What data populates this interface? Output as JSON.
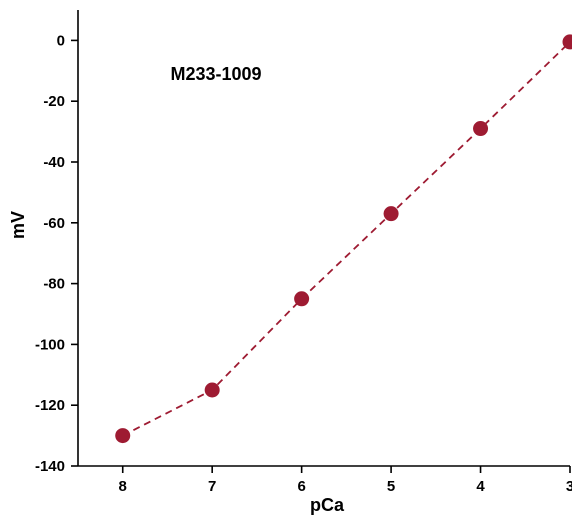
{
  "chart_data": {
    "type": "line",
    "title": "",
    "annotation": "M233-1009",
    "xlabel": "pCa",
    "ylabel": "mV",
    "x": [
      8,
      7,
      6,
      5,
      4,
      3
    ],
    "x_ticks": [
      "8",
      "7",
      "6",
      "5",
      "4",
      "3"
    ],
    "xlim": [
      8.5,
      3
    ],
    "x_reversed": true,
    "ylim": [
      -140,
      10
    ],
    "y_ticks": [
      "0",
      "-20",
      "-40",
      "-60",
      "-80",
      "-100",
      "-120",
      "-140"
    ],
    "series": [
      {
        "values": [
          -130,
          -115,
          -85,
          -57,
          -29,
          -0.5
        ],
        "color": "#9e1b32",
        "line_style": "dashed",
        "marker": "circle"
      }
    ],
    "grid": false,
    "legend": "none"
  }
}
